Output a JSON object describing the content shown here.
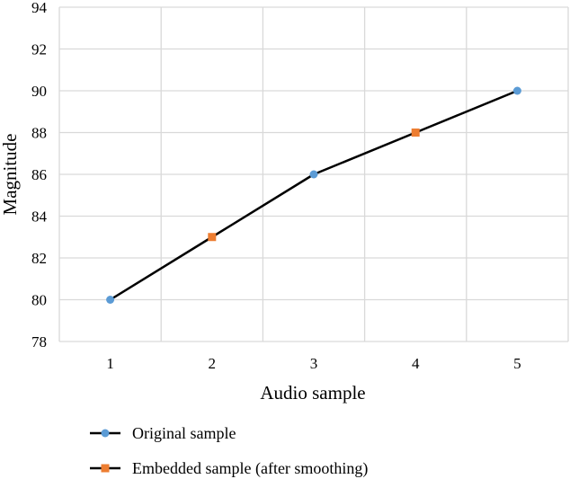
{
  "chart_data": {
    "type": "line",
    "title": "",
    "xlabel": "Audio sample",
    "ylabel": "Magnitude",
    "x": [
      1,
      2,
      3,
      4,
      5
    ],
    "y": [
      80,
      83,
      86,
      88,
      90
    ],
    "xticks": [
      "1",
      "2",
      "3",
      "4",
      "5"
    ],
    "ylim": [
      78,
      94
    ],
    "yticks": [
      "78",
      "80",
      "82",
      "84",
      "86",
      "88",
      "90",
      "92",
      "94"
    ],
    "grid": true,
    "line_color": "#000000",
    "series": [
      {
        "name": "Original sample",
        "x": [
          1,
          3,
          5
        ],
        "y": [
          80,
          86,
          90
        ],
        "marker": "circle",
        "color": "#5b9bd5"
      },
      {
        "name": "Embedded sample (after smoothing)",
        "x": [
          2,
          4
        ],
        "y": [
          83,
          88
        ],
        "marker": "square",
        "color": "#ed7d31"
      }
    ],
    "legend_position": "bottom-left"
  }
}
